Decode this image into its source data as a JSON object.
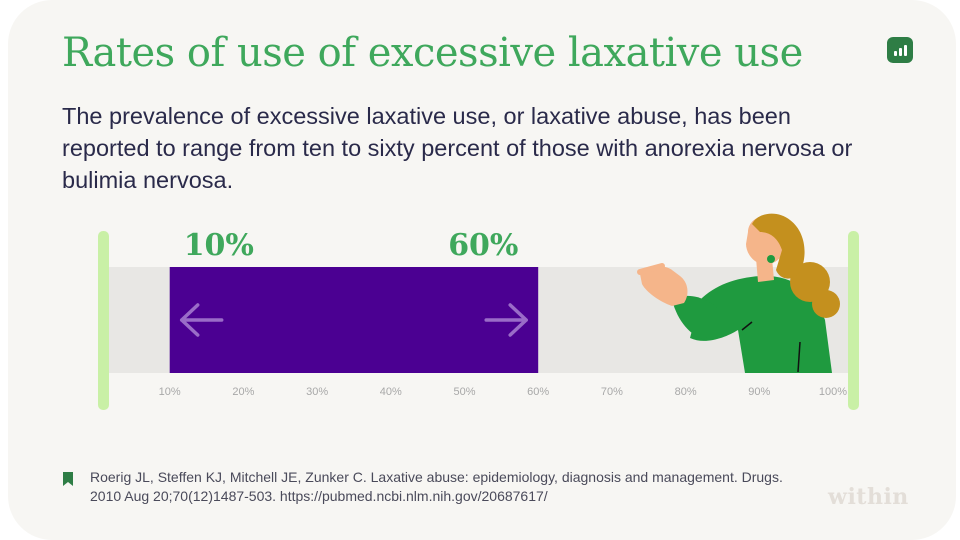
{
  "header": {
    "title": "Rates of use of excessive laxative use",
    "subtitle": "The prevalence of excessive laxative use, or laxative abuse, has been reported to range from ten to sixty percent of those with anorexia nervosa or bulimia nervosa."
  },
  "chart_data": {
    "type": "range-bar",
    "range": {
      "start": 10,
      "end": 60
    },
    "start_label": "10%",
    "end_label": "60%",
    "xlim": [
      0,
      100
    ],
    "ticks": [
      "10%",
      "20%",
      "30%",
      "40%",
      "50%",
      "60%",
      "70%",
      "80%",
      "90%",
      "100%"
    ],
    "tick_values": [
      10,
      20,
      30,
      40,
      50,
      60,
      70,
      80,
      90,
      100
    ],
    "colors": {
      "range_fill": "#4b0092",
      "track": "#e8e7e4",
      "range_label": "#3fa85c",
      "end_caps": "#c9f0a6",
      "arrows": "#9a6cc8",
      "tick_text": "#a8a8a8"
    }
  },
  "footer": {
    "source": "Roerig JL, Steffen KJ, Mitchell JE, Zunker C. Laxative abuse: epidemiology, diagnosis and management. Drugs. 2010 Aug 20;70(12)1487-503. https://pubmed.ncbi.nlm.nih.gov/20687617/",
    "brand": "within"
  },
  "icons": {
    "logo": "bar-chart-icon",
    "source": "bookmark-icon",
    "arrow_left": "arrow-left-icon",
    "arrow_right": "arrow-right-icon"
  },
  "illustration": "woman-pointing-illustration"
}
